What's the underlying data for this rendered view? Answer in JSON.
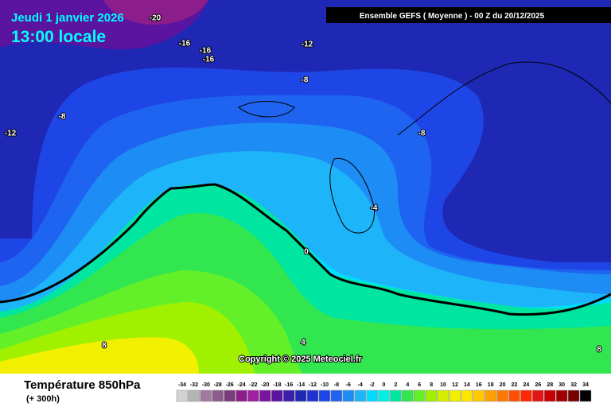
{
  "header": {
    "date": "Jeudi 1 janvier 2026",
    "time": "13:00 locale",
    "model": "Ensemble GEFS  ( Moyenne )  -  00 Z du 20/12/2025"
  },
  "contour_labels": [
    "-20",
    "-16",
    "-16",
    "-16",
    "-12",
    "-8",
    "-12",
    "-8",
    "-8",
    "-4",
    "0",
    "4",
    "8",
    "8"
  ],
  "copyright": "Copyright © 2025 Meteociel.fr",
  "footer": {
    "variable": "Température 850hPa",
    "lead": "(+ 300h)"
  },
  "legend": {
    "values": [
      -34,
      -32,
      -30,
      -28,
      -26,
      -24,
      -22,
      -20,
      -18,
      -16,
      -14,
      -12,
      -10,
      -8,
      -6,
      -4,
      -2,
      0,
      2,
      4,
      6,
      8,
      10,
      12,
      14,
      16,
      18,
      20,
      22,
      24,
      26,
      28,
      30,
      32,
      34
    ],
    "colors": [
      "#d2d2d2",
      "#b4b4b4",
      "#a07aa0",
      "#8c5a8c",
      "#783c78",
      "#8c1e8c",
      "#a01ea0",
      "#7814a0",
      "#5a14a0",
      "#3c1eaa",
      "#1e28b4",
      "#1e32d2",
      "#1e46e6",
      "#1e64f0",
      "#1e8cf5",
      "#1eb4fa",
      "#00dcff",
      "#00f0e6",
      "#00e6a0",
      "#32e650",
      "#64f028",
      "#a0f000",
      "#d2f000",
      "#f0f000",
      "#ffe600",
      "#ffc800",
      "#ffa000",
      "#ff7800",
      "#ff5000",
      "#ff2800",
      "#e61414",
      "#c80000",
      "#a00000",
      "#780000",
      "#000000"
    ]
  }
}
